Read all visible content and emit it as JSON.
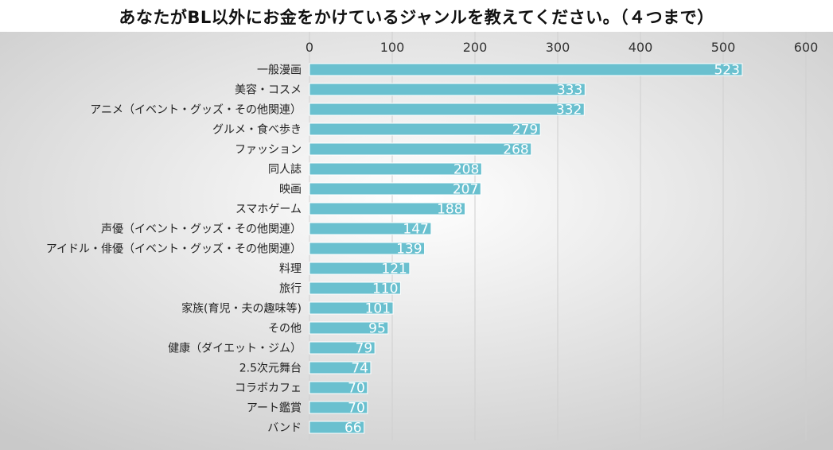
{
  "title": "あなたがBL以外にお金をかけているジャンルを教えてください。（４つまで）",
  "colors": {
    "bar": "#6ac0cf",
    "bar_stroke": "#ffffff",
    "grid": "#cfcfcf",
    "background_light": "#ffffff",
    "background_dark": "#c9c9c9"
  },
  "chart_data": {
    "type": "bar",
    "orientation": "horizontal",
    "title": "あなたがBL以外にお金をかけているジャンルを教えてください。（４つまで）",
    "xlabel": "",
    "ylabel": "",
    "xlim": [
      0,
      600
    ],
    "ticks": [
      0,
      100,
      200,
      300,
      400,
      500,
      600
    ],
    "tick_labels": [
      "0",
      "100",
      "200",
      "300",
      "400",
      "500",
      "600"
    ],
    "grid": true,
    "data_labels": true,
    "categories": [
      "一般漫画",
      "美容・コスメ",
      "アニメ（イベント・グッズ・その他関連）",
      "グルメ・食べ歩き",
      "ファッション",
      "同人誌",
      "映画",
      "スマホゲーム",
      "声優（イベント・グッズ・その他関連）",
      "アイドル・俳優（イベント・グッズ・その他関連）",
      "料理",
      "旅行",
      "家族(育児・夫の趣味等)",
      "その他",
      "健康（ダイエット・ジム）",
      "2.5次元舞台",
      "コラボカフェ",
      "アート鑑賞",
      "バンド"
    ],
    "values": [
      523,
      333,
      332,
      279,
      268,
      208,
      207,
      188,
      147,
      139,
      121,
      110,
      101,
      95,
      79,
      74,
      70,
      70,
      66
    ],
    "value_labels": [
      "523",
      "333",
      "332",
      "279",
      "268",
      "208",
      "207",
      "188",
      "147",
      "139",
      "121",
      "110",
      "101",
      "95",
      "79",
      "74",
      "70",
      "70",
      "66"
    ]
  }
}
